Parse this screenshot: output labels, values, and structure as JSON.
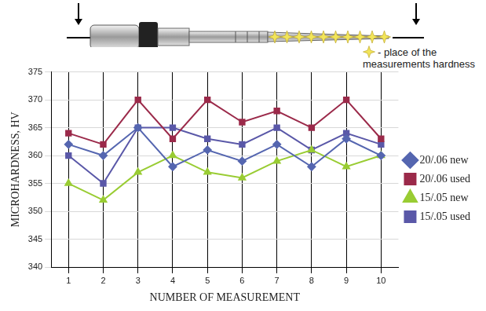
{
  "chart_data": {
    "type": "line",
    "annotation": "- place of the measurements hardness",
    "x_label": "NUMBER OF MEASUREMENT",
    "y_label": "MICROHARDNESS, HV",
    "categories": [
      "1",
      "2",
      "3",
      "4",
      "5",
      "6",
      "7",
      "8",
      "9",
      "10"
    ],
    "series": [
      {
        "name": "20/.06 new",
        "color": "#5566b0",
        "marker": "diamond",
        "values": [
          362,
          360,
          365,
          358,
          361,
          359,
          362,
          358,
          363,
          360
        ]
      },
      {
        "name": "20/.06 used",
        "color": "#9b2a4a",
        "marker": "square",
        "values": [
          364,
          362,
          370,
          363,
          370,
          366,
          368,
          365,
          370,
          363
        ]
      },
      {
        "name": "15/.05 new",
        "color": "#99cc33",
        "marker": "triangle",
        "values": [
          355,
          352,
          357,
          360,
          357,
          356,
          359,
          361,
          358,
          360
        ]
      },
      {
        "name": "15/.05 used",
        "color": "#5a58a8",
        "marker": "square",
        "values": [
          360,
          355,
          365,
          365,
          363,
          362,
          365,
          361,
          364,
          362
        ]
      }
    ],
    "ylim": [
      340,
      375
    ],
    "yticks": [
      340,
      345,
      350,
      355,
      360,
      365,
      370,
      375
    ],
    "grid": true,
    "legend": "right"
  }
}
